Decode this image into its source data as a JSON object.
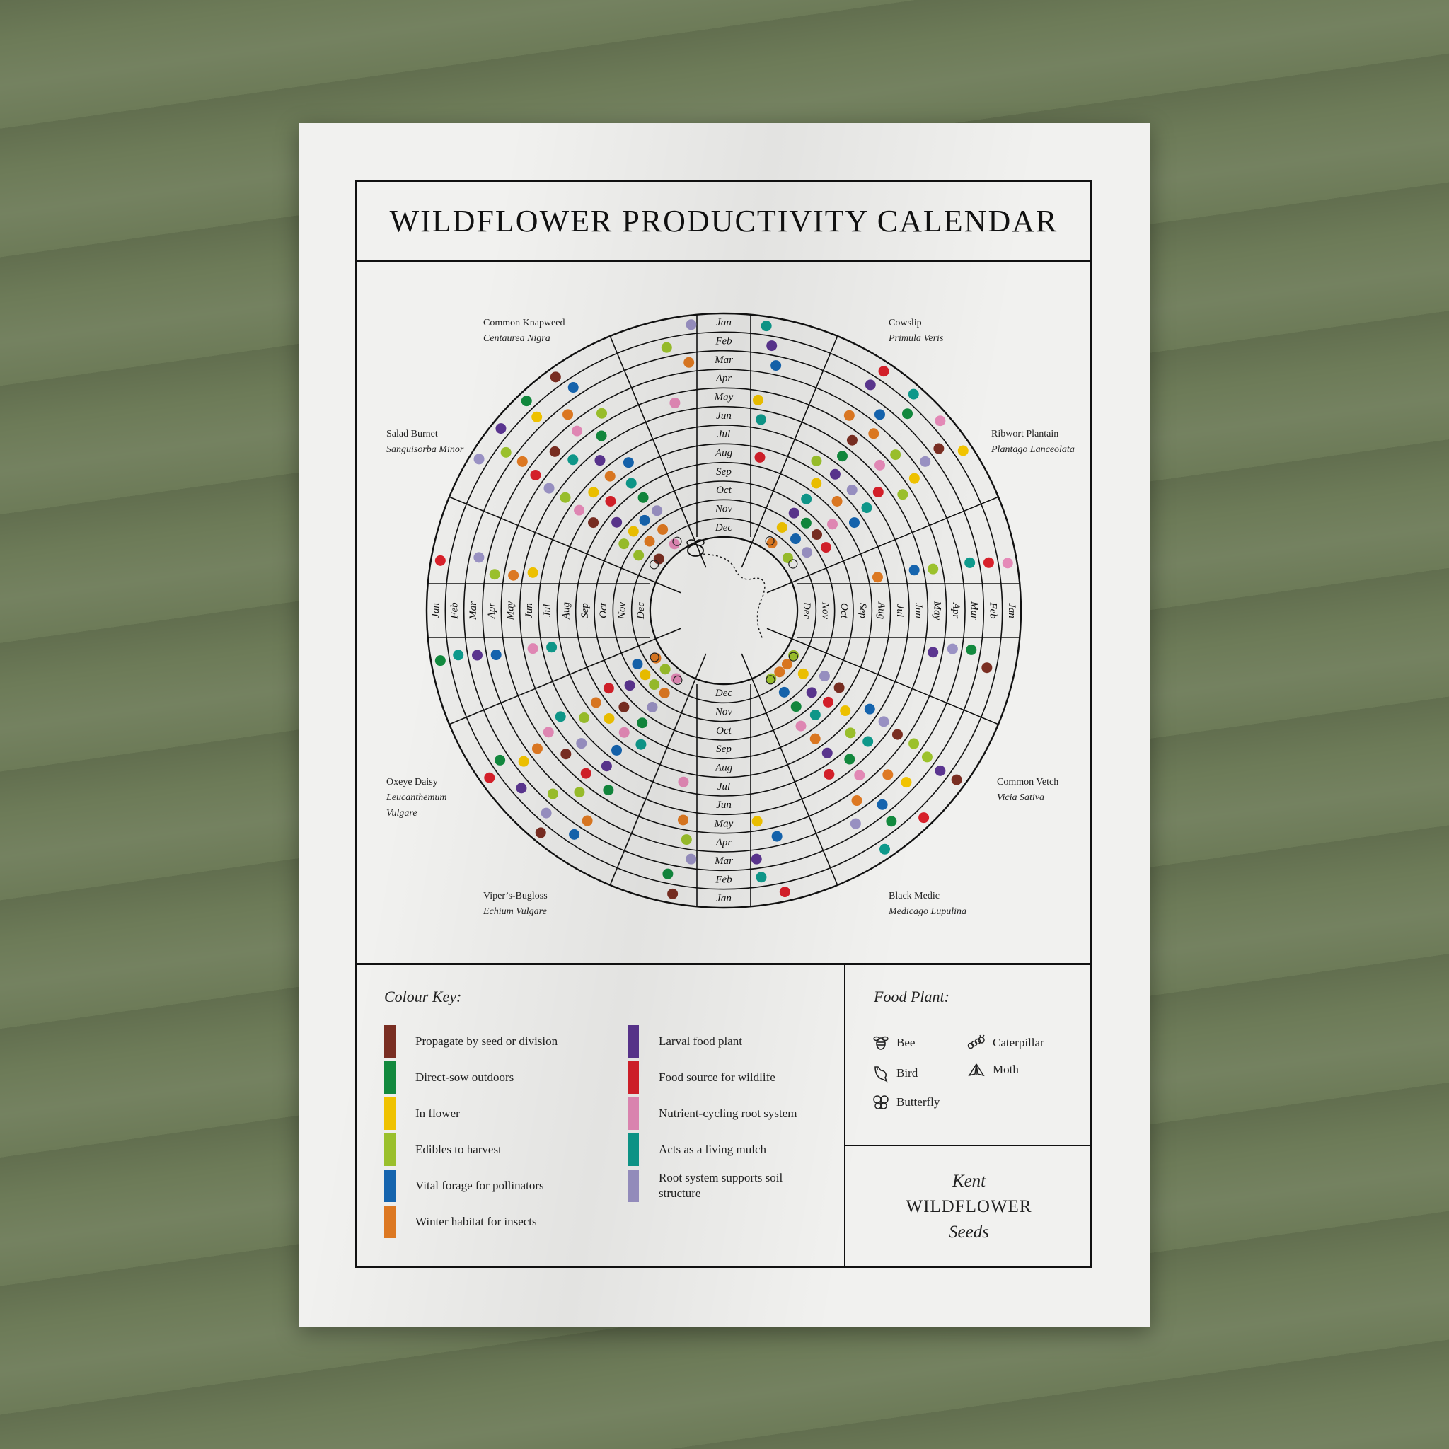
{
  "title": "WILDFLOWER PRODUCTIVITY CALENDAR",
  "months": [
    "Jan",
    "Feb",
    "Mar",
    "Apr",
    "May",
    "Jun",
    "Jul",
    "Aug",
    "Sep",
    "Oct",
    "Nov",
    "Dec"
  ],
  "plants": [
    {
      "common": "Common Knapweed",
      "scientific": "Centaurea Nigra"
    },
    {
      "common": "Cowslip",
      "scientific": "Primula Veris"
    },
    {
      "common": "Salad Burnet",
      "scientific": "Sanguisorba Minor"
    },
    {
      "common": "Ribwort Plantain",
      "scientific": "Plantago Lanceolata"
    },
    {
      "common": "Oxeye Daisy",
      "scientific": "Leucanthemum Vulgare"
    },
    {
      "common": "Common Vetch",
      "scientific": "Vicia Sativa"
    },
    {
      "common": "Viper’s-Bugloss",
      "scientific": "Echium Vulgare"
    },
    {
      "common": "Black Medic",
      "scientific": "Medicago Lupulina"
    }
  ],
  "colour_key": {
    "title": "Colour Key:",
    "items": [
      {
        "label": "Propagate by seed or division",
        "color": "#7a2e22"
      },
      {
        "label": "Direct-sow outdoors",
        "color": "#128a3e"
      },
      {
        "label": "In flower",
        "color": "#f2c400"
      },
      {
        "label": "Edibles to harvest",
        "color": "#9cc22c"
      },
      {
        "label": "Vital forage for pollinators",
        "color": "#1565b0"
      },
      {
        "label": "Winter habitat for insects",
        "color": "#e07a22"
      },
      {
        "label": "Larval food plant",
        "color": "#5b3590"
      },
      {
        "label": "Food source for wildlife",
        "color": "#d7202a"
      },
      {
        "label": "Nutrient-cycling root system",
        "color": "#e58ab8"
      },
      {
        "label": "Acts as a living mulch",
        "color": "#0e9a8c"
      },
      {
        "label": "Root system supports soil structure",
        "color": "#9a92c4"
      }
    ]
  },
  "food_plant": {
    "title": "Food Plant:",
    "items": [
      {
        "label": "Bee",
        "icon": "bee-icon"
      },
      {
        "label": "Caterpillar",
        "icon": "caterpillar-icon"
      },
      {
        "label": "Bird",
        "icon": "bird-icon"
      },
      {
        "label": "Moth",
        "icon": "moth-icon"
      },
      {
        "label": "Butterfly",
        "icon": "butterfly-icon"
      }
    ]
  },
  "brand": {
    "line1": "Kent",
    "line2": "WILDFLOWER",
    "line3": "Seeds"
  }
}
